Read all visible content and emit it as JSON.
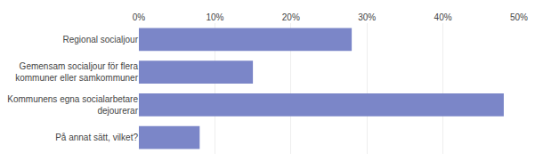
{
  "chart_data": {
    "type": "bar",
    "orientation": "horizontal",
    "categories": [
      "På annat sätt, vilket?",
      "Kommunens egna socialarbetare\ndejourerar",
      "Gemensam socialjour för flera\nkommuner eller samkommuner",
      "Regional socialjour"
    ],
    "values": [
      8,
      48,
      15,
      28
    ],
    "color": "#7b86c8",
    "xlim": [
      0,
      50
    ],
    "xticks": [
      {
        "value": 0,
        "label": "0%"
      },
      {
        "value": 10,
        "label": "10%"
      },
      {
        "value": 20,
        "label": "20%"
      },
      {
        "value": 30,
        "label": "30%"
      },
      {
        "value": 40,
        "label": "40%"
      },
      {
        "value": 50,
        "label": "50%"
      }
    ],
    "grid": true
  }
}
